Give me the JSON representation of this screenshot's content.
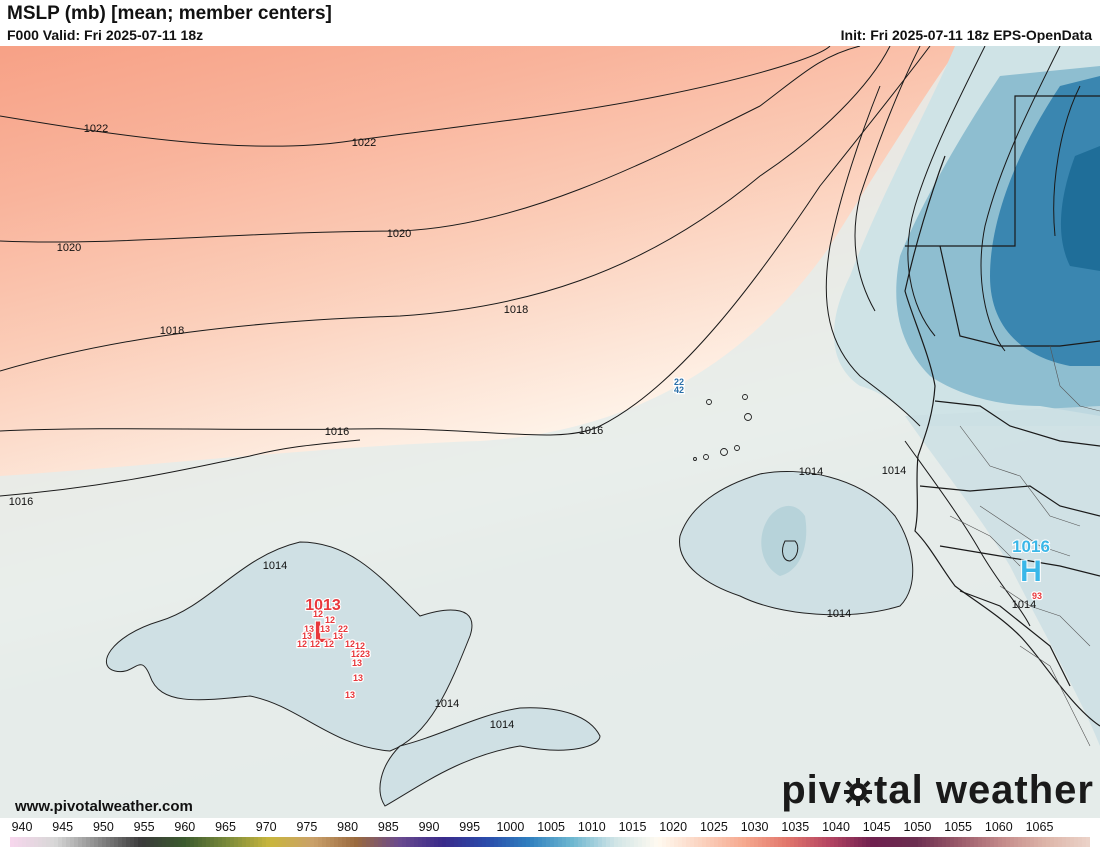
{
  "header": {
    "title": "MSLP (mb) [mean; member centers]",
    "valid": "F000 Valid: Fri 2025-07-11 18z",
    "init": "Init: Fri 2025-07-11 18z EPS-OpenData"
  },
  "map": {
    "contour_labels": [
      "1022",
      "1022",
      "1020",
      "1020",
      "1018",
      "1018",
      "1016",
      "1016",
      "1016",
      "1014",
      "1014",
      "1014",
      "1014",
      "1014",
      "1014",
      "1014"
    ],
    "low_center": {
      "symbol": "L",
      "value": "1013",
      "color": "#e8383c"
    },
    "high_center": {
      "symbol": "H",
      "value": "1016",
      "color": "#3ab7e8"
    },
    "member_labels": [
      "12",
      "12",
      "13",
      "13",
      "13",
      "13",
      "12",
      "12",
      "12",
      "22",
      "12",
      "12",
      "12",
      "23",
      "13",
      "13",
      "13"
    ],
    "cabo_verde_labels": [
      "22",
      "42"
    ],
    "africa_member_label": "93"
  },
  "footer": {
    "url": "www.pivotalweather.com",
    "brand_left": "piv",
    "brand_right": "tal weather"
  },
  "colorbar": {
    "ticks": [
      "940",
      "945",
      "950",
      "955",
      "960",
      "965",
      "970",
      "975",
      "980",
      "985",
      "990",
      "995",
      "1000",
      "1005",
      "1010",
      "1015",
      "1020",
      "1025",
      "1030",
      "1035",
      "1040",
      "1045",
      "1050",
      "1055",
      "1060",
      "1065"
    ],
    "stops": [
      "#f6d6ec",
      "#d7d7d7",
      "#8a8a8a",
      "#3a3a3a",
      "#3b5a2e",
      "#7a8a3a",
      "#c9b63d",
      "#caa06a",
      "#9a6a3e",
      "#6a4a8e",
      "#3a2a8a",
      "#2a4aaa",
      "#2f7fbf",
      "#6cb6d0",
      "#cfe4e6",
      "#fffaf0",
      "#fbd3c0",
      "#f6a98f",
      "#e2776c",
      "#b44462",
      "#6e1f4e",
      "#6c2e50",
      "#9a5a6a",
      "#c48a8a",
      "#ddb4a8",
      "#ebd2c8"
    ]
  }
}
